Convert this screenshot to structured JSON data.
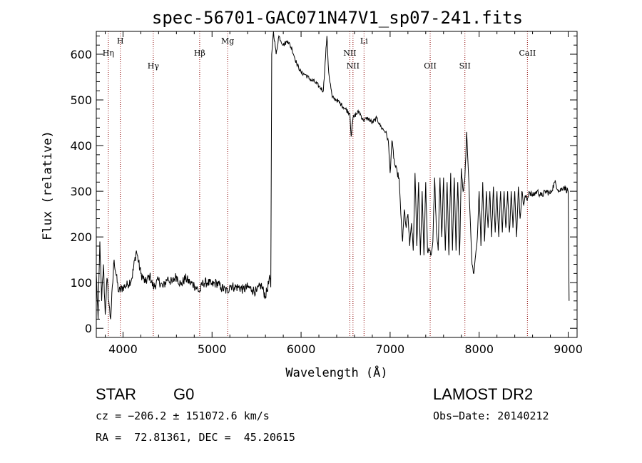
{
  "chart_data": {
    "type": "line",
    "title": "spec-56701-GAC071N47V1_sp07-241.fits",
    "xlabel": "Wavelength (Å)",
    "ylabel": "Flux (relative)",
    "xlim": [
      3700,
      9100
    ],
    "ylim": [
      -20,
      650
    ],
    "xticks": [
      4000,
      5000,
      6000,
      7000,
      8000,
      9000
    ],
    "yticks": [
      0,
      100,
      200,
      300,
      400,
      500,
      600
    ],
    "grid": false,
    "line_color": "#000000",
    "marker_color": "#8b0000",
    "spectral_lines": [
      {
        "label": "Hη",
        "x": 3835,
        "row": 2
      },
      {
        "label": "H",
        "x": 3970,
        "row": 1
      },
      {
        "label": "Hγ",
        "x": 4340,
        "row": 3
      },
      {
        "label": "Hβ",
        "x": 4861,
        "row": 2
      },
      {
        "label": "Mg",
        "x": 5175,
        "row": 1
      },
      {
        "label": "NII",
        "x": 6548,
        "row": 2
      },
      {
        "label": "NII",
        "x": 6583,
        "row": 3
      },
      {
        "label": "Li",
        "x": 6707,
        "row": 1
      },
      {
        "label": "OII",
        "x": 7450,
        "row": 3
      },
      {
        "label": "SII",
        "x": 7840,
        "row": 3
      },
      {
        "label": "CaII",
        "x": 8542,
        "row": 2
      }
    ],
    "anchors": [
      [
        3700,
        120
      ],
      [
        3720,
        20
      ],
      [
        3740,
        190
      ],
      [
        3760,
        60
      ],
      [
        3780,
        140
      ],
      [
        3800,
        30
      ],
      [
        3820,
        110
      ],
      [
        3840,
        60
      ],
      [
        3860,
        20
      ],
      [
        3900,
        150
      ],
      [
        3950,
        80
      ],
      [
        4000,
        90
      ],
      [
        4050,
        95
      ],
      [
        4100,
        110
      ],
      [
        4150,
        170
      ],
      [
        4200,
        120
      ],
      [
        4250,
        100
      ],
      [
        4300,
        115
      ],
      [
        4340,
        90
      ],
      [
        4400,
        105
      ],
      [
        4450,
        90
      ],
      [
        4500,
        110
      ],
      [
        4550,
        100
      ],
      [
        4600,
        115
      ],
      [
        4650,
        95
      ],
      [
        4700,
        110
      ],
      [
        4750,
        100
      ],
      [
        4800,
        95
      ],
      [
        4861,
        80
      ],
      [
        4900,
        100
      ],
      [
        4950,
        100
      ],
      [
        5000,
        95
      ],
      [
        5050,
        100
      ],
      [
        5100,
        90
      ],
      [
        5175,
        80
      ],
      [
        5200,
        95
      ],
      [
        5250,
        90
      ],
      [
        5300,
        90
      ],
      [
        5350,
        85
      ],
      [
        5400,
        90
      ],
      [
        5450,
        85
      ],
      [
        5500,
        80
      ],
      [
        5550,
        95
      ],
      [
        5600,
        70
      ],
      [
        5650,
        110
      ],
      [
        5660,
        90
      ],
      [
        5670,
        600
      ],
      [
        5690,
        650
      ],
      [
        5720,
        600
      ],
      [
        5750,
        640
      ],
      [
        5800,
        620
      ],
      [
        5850,
        630
      ],
      [
        5900,
        610
      ],
      [
        5950,
        580
      ],
      [
        6000,
        560
      ],
      [
        6050,
        555
      ],
      [
        6100,
        545
      ],
      [
        6150,
        540
      ],
      [
        6200,
        530
      ],
      [
        6250,
        520
      ],
      [
        6290,
        640
      ],
      [
        6310,
        560
      ],
      [
        6350,
        505
      ],
      [
        6400,
        500
      ],
      [
        6450,
        490
      ],
      [
        6500,
        480
      ],
      [
        6548,
        470
      ],
      [
        6563,
        420
      ],
      [
        6583,
        460
      ],
      [
        6600,
        465
      ],
      [
        6650,
        475
      ],
      [
        6700,
        455
      ],
      [
        6750,
        460
      ],
      [
        6800,
        450
      ],
      [
        6850,
        460
      ],
      [
        6900,
        440
      ],
      [
        6950,
        430
      ],
      [
        6980,
        410
      ],
      [
        7000,
        340
      ],
      [
        7020,
        410
      ],
      [
        7050,
        360
      ],
      [
        7080,
        340
      ],
      [
        7100,
        330
      ],
      [
        7120,
        250
      ],
      [
        7140,
        190
      ],
      [
        7160,
        260
      ],
      [
        7180,
        220
      ],
      [
        7200,
        250
      ],
      [
        7220,
        180
      ],
      [
        7240,
        230
      ],
      [
        7260,
        170
      ],
      [
        7280,
        340
      ],
      [
        7300,
        180
      ],
      [
        7320,
        320
      ],
      [
        7340,
        160
      ],
      [
        7360,
        300
      ],
      [
        7380,
        160
      ],
      [
        7400,
        320
      ],
      [
        7420,
        170
      ],
      [
        7440,
        170
      ],
      [
        7460,
        160
      ],
      [
        7480,
        190
      ],
      [
        7500,
        330
      ],
      [
        7520,
        210
      ],
      [
        7540,
        170
      ],
      [
        7560,
        330
      ],
      [
        7580,
        200
      ],
      [
        7600,
        330
      ],
      [
        7620,
        170
      ],
      [
        7640,
        320
      ],
      [
        7660,
        160
      ],
      [
        7680,
        340
      ],
      [
        7700,
        170
      ],
      [
        7720,
        330
      ],
      [
        7740,
        170
      ],
      [
        7760,
        320
      ],
      [
        7780,
        160
      ],
      [
        7800,
        350
      ],
      [
        7820,
        300
      ],
      [
        7840,
        330
      ],
      [
        7860,
        430
      ],
      [
        7880,
        340
      ],
      [
        7900,
        240
      ],
      [
        7920,
        140
      ],
      [
        7940,
        120
      ],
      [
        7960,
        160
      ],
      [
        7980,
        200
      ],
      [
        8000,
        300
      ],
      [
        8020,
        180
      ],
      [
        8040,
        320
      ],
      [
        8060,
        190
      ],
      [
        8080,
        300
      ],
      [
        8100,
        220
      ],
      [
        8120,
        300
      ],
      [
        8140,
        200
      ],
      [
        8160,
        310
      ],
      [
        8180,
        210
      ],
      [
        8200,
        300
      ],
      [
        8220,
        200
      ],
      [
        8240,
        300
      ],
      [
        8260,
        210
      ],
      [
        8280,
        300
      ],
      [
        8300,
        220
      ],
      [
        8320,
        300
      ],
      [
        8340,
        210
      ],
      [
        8360,
        300
      ],
      [
        8380,
        220
      ],
      [
        8400,
        300
      ],
      [
        8420,
        200
      ],
      [
        8440,
        310
      ],
      [
        8460,
        240
      ],
      [
        8480,
        300
      ],
      [
        8500,
        270
      ],
      [
        8520,
        290
      ],
      [
        8540,
        280
      ],
      [
        8560,
        300
      ],
      [
        8600,
        290
      ],
      [
        8650,
        300
      ],
      [
        8700,
        290
      ],
      [
        8750,
        300
      ],
      [
        8800,
        295
      ],
      [
        8850,
        320
      ],
      [
        8900,
        300
      ],
      [
        8950,
        310
      ],
      [
        9000,
        300
      ],
      [
        9010,
        60
      ]
    ]
  },
  "info": {
    "object_class": "STAR",
    "subclass": "G0",
    "survey": "LAMOST DR2",
    "cz": "cz = −206.2 ± 151072.6 km/s",
    "obs_date": "Obs−Date: 20140212",
    "coords": "RA =  72.81361, DEC =  45.20615"
  }
}
